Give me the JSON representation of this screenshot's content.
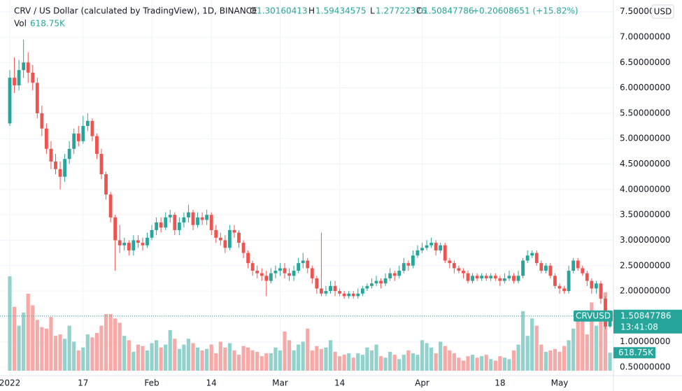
{
  "chart_data": {
    "type": "candlestick",
    "title": "CRV / US Dollar (calculated by TradingView), 1D, BINANCE",
    "ohlc_labels": [
      "O",
      "H",
      "L",
      "C"
    ],
    "change_label": "+0.20608651 (+15.82%)",
    "volume_title": "Vol",
    "volume_label": "618.75K",
    "symbol": "CRVUSD",
    "countdown": "13:41:08",
    "currency": "USD",
    "up_color": "#26a69a",
    "down_color": "#ef5350",
    "volume_up_color": "#92d2cc",
    "volume_down_color": "#f7a9a7",
    "grid": true,
    "ylim": [
      0.335,
      7.73
    ],
    "yticks": [
      {
        "value": 0.5,
        "label": "0.50000000"
      },
      {
        "value": 1,
        "label": "1.00000000"
      },
      {
        "value": 1.5,
        "label": "1.50000000"
      },
      {
        "value": 2,
        "label": "2.00000000"
      },
      {
        "value": 2.5,
        "label": "2.50000000"
      },
      {
        "value": 3,
        "label": "3.00000000"
      },
      {
        "value": 3.5,
        "label": "3.50000000"
      },
      {
        "value": 4,
        "label": "4.00000000"
      },
      {
        "value": 4.5,
        "label": "4.50000000"
      },
      {
        "value": 5,
        "label": "5.00000000"
      },
      {
        "value": 5.5,
        "label": "5.50000000"
      },
      {
        "value": 6,
        "label": "6.00000000"
      },
      {
        "value": 6.5,
        "label": "6.50000000"
      },
      {
        "value": 7,
        "label": "7.00000000"
      },
      {
        "value": 7.5,
        "label": "7.50000000"
      }
    ],
    "xticks": [
      {
        "value": "2022-01-01",
        "label": "2022"
      },
      {
        "value": "2022-01-17",
        "label": "17"
      },
      {
        "value": "2022-02-01",
        "label": "Feb"
      },
      {
        "value": "2022-02-14",
        "label": "14"
      },
      {
        "value": "2022-03-01",
        "label": "Mar"
      },
      {
        "value": "2022-03-14",
        "label": "14"
      },
      {
        "value": "2022-04-01",
        "label": "Apr"
      },
      {
        "value": "2022-04-18",
        "label": "18"
      },
      {
        "value": "2022-05-01",
        "label": "May"
      }
    ],
    "x": [
      "2022-01-01",
      "2022-01-02",
      "2022-01-03",
      "2022-01-04",
      "2022-01-05",
      "2022-01-06",
      "2022-01-07",
      "2022-01-08",
      "2022-01-09",
      "2022-01-10",
      "2022-01-11",
      "2022-01-12",
      "2022-01-13",
      "2022-01-14",
      "2022-01-15",
      "2022-01-16",
      "2022-01-17",
      "2022-01-18",
      "2022-01-19",
      "2022-01-20",
      "2022-01-21",
      "2022-01-22",
      "2022-01-23",
      "2022-01-24",
      "2022-01-25",
      "2022-01-26",
      "2022-01-27",
      "2022-01-28",
      "2022-01-29",
      "2022-01-30",
      "2022-01-31",
      "2022-02-01",
      "2022-02-02",
      "2022-02-03",
      "2022-02-04",
      "2022-02-05",
      "2022-02-06",
      "2022-02-07",
      "2022-02-08",
      "2022-02-09",
      "2022-02-10",
      "2022-02-11",
      "2022-02-12",
      "2022-02-13",
      "2022-02-14",
      "2022-02-15",
      "2022-02-16",
      "2022-02-17",
      "2022-02-18",
      "2022-02-19",
      "2022-02-20",
      "2022-02-21",
      "2022-02-22",
      "2022-02-23",
      "2022-02-24",
      "2022-02-25",
      "2022-02-26",
      "2022-02-27",
      "2022-02-28",
      "2022-03-01",
      "2022-03-02",
      "2022-03-03",
      "2022-03-04",
      "2022-03-05",
      "2022-03-06",
      "2022-03-07",
      "2022-03-08",
      "2022-03-09",
      "2022-03-10",
      "2022-03-11",
      "2022-03-12",
      "2022-03-13",
      "2022-03-14",
      "2022-03-15",
      "2022-03-16",
      "2022-03-17",
      "2022-03-18",
      "2022-03-19",
      "2022-03-20",
      "2022-03-21",
      "2022-03-22",
      "2022-03-23",
      "2022-03-24",
      "2022-03-25",
      "2022-03-26",
      "2022-03-27",
      "2022-03-28",
      "2022-03-29",
      "2022-03-30",
      "2022-03-31",
      "2022-04-01",
      "2022-04-02",
      "2022-04-03",
      "2022-04-04",
      "2022-04-05",
      "2022-04-06",
      "2022-04-07",
      "2022-04-08",
      "2022-04-09",
      "2022-04-10",
      "2022-04-11",
      "2022-04-12",
      "2022-04-13",
      "2022-04-14",
      "2022-04-15",
      "2022-04-16",
      "2022-04-17",
      "2022-04-18",
      "2022-04-19",
      "2022-04-20",
      "2022-04-21",
      "2022-04-22",
      "2022-04-23",
      "2022-04-24",
      "2022-04-25",
      "2022-04-26",
      "2022-04-27",
      "2022-04-28",
      "2022-04-29",
      "2022-04-30",
      "2022-05-01",
      "2022-05-02",
      "2022-05-03",
      "2022-05-04",
      "2022-05-05",
      "2022-05-06",
      "2022-05-07",
      "2022-05-08",
      "2022-05-09",
      "2022-05-10",
      "2022-05-11",
      "2022-05-12"
    ],
    "open": [
      5.3,
      6.2,
      6.05,
      6.35,
      6.5,
      6.3,
      6.1,
      5.5,
      5.2,
      4.8,
      4.55,
      4.4,
      4.25,
      4.6,
      4.8,
      5.1,
      4.95,
      5.25,
      5.35,
      5.05,
      4.7,
      4.3,
      3.9,
      3.45,
      3.0,
      2.9,
      2.95,
      2.8,
      3.0,
      2.95,
      2.9,
      3.05,
      3.2,
      3.35,
      3.25,
      3.45,
      3.5,
      3.2,
      3.35,
      3.45,
      3.55,
      3.3,
      3.45,
      3.4,
      3.5,
      3.2,
      3.05,
      3.0,
      2.85,
      3.2,
      3.15,
      2.95,
      2.75,
      2.55,
      2.4,
      2.35,
      2.3,
      2.2,
      2.35,
      2.4,
      2.45,
      2.35,
      2.3,
      2.4,
      2.55,
      2.6,
      2.45,
      2.25,
      2.05,
      1.95,
      2.0,
      2.1,
      2.0,
      1.95,
      1.9,
      1.95,
      1.9,
      1.95,
      2.05,
      2.1,
      2.15,
      2.2,
      2.15,
      2.25,
      2.35,
      2.3,
      2.4,
      2.55,
      2.5,
      2.7,
      2.8,
      2.85,
      2.9,
      2.95,
      2.8,
      2.9,
      2.6,
      2.55,
      2.45,
      2.4,
      2.35,
      2.2,
      2.3,
      2.25,
      2.3,
      2.25,
      2.3,
      2.25,
      2.2,
      2.25,
      2.3,
      2.2,
      2.3,
      2.6,
      2.7,
      2.75,
      2.55,
      2.4,
      2.5,
      2.3,
      2.1,
      2.05,
      2.0,
      2.4,
      2.6,
      2.45,
      2.35,
      2.2,
      2.05,
      2.15,
      1.85,
      1.30160413
    ],
    "high": [
      6.35,
      6.6,
      6.55,
      6.95,
      6.7,
      6.45,
      6.2,
      5.65,
      5.3,
      4.95,
      4.7,
      4.55,
      4.7,
      4.95,
      5.2,
      5.25,
      5.45,
      5.5,
      5.4,
      5.1,
      4.8,
      4.35,
      3.95,
      3.5,
      3.3,
      3.05,
      3.0,
      3.1,
      3.1,
      3.05,
      3.15,
      3.3,
      3.45,
      3.45,
      3.55,
      3.6,
      3.55,
      3.45,
      3.55,
      3.7,
      3.6,
      3.55,
      3.55,
      3.6,
      3.55,
      3.3,
      3.15,
      3.1,
      3.3,
      3.3,
      3.2,
      3.0,
      2.8,
      2.6,
      2.5,
      2.45,
      2.4,
      2.45,
      2.5,
      2.55,
      2.55,
      2.45,
      2.5,
      2.65,
      2.75,
      2.65,
      2.5,
      2.3,
      3.15,
      2.1,
      2.2,
      2.2,
      2.05,
      2.0,
      2.0,
      2.0,
      2.05,
      2.1,
      2.15,
      2.25,
      2.3,
      2.25,
      2.35,
      2.45,
      2.4,
      2.5,
      2.65,
      2.6,
      2.8,
      2.9,
      2.95,
      3.0,
      3.05,
      3.0,
      2.95,
      2.95,
      2.65,
      2.6,
      2.5,
      2.45,
      2.4,
      2.35,
      2.35,
      2.35,
      2.35,
      2.35,
      2.35,
      2.3,
      2.35,
      2.4,
      2.35,
      2.4,
      2.65,
      2.8,
      2.8,
      2.8,
      2.6,
      2.55,
      2.55,
      2.35,
      2.15,
      2.1,
      2.5,
      2.65,
      2.65,
      2.5,
      2.4,
      2.25,
      2.2,
      2.2,
      1.9,
      1.59434575
    ],
    "low": [
      5.25,
      5.9,
      5.95,
      6.2,
      6.1,
      5.95,
      5.4,
      5.05,
      4.7,
      4.4,
      4.3,
      4.0,
      4.15,
      4.5,
      4.7,
      4.85,
      4.9,
      5.15,
      4.95,
      4.6,
      4.2,
      3.8,
      3.35,
      2.4,
      2.75,
      2.8,
      2.7,
      2.7,
      2.85,
      2.8,
      2.85,
      3.0,
      3.1,
      3.15,
      3.2,
      3.35,
      3.1,
      3.1,
      3.25,
      3.35,
      3.2,
      3.25,
      3.3,
      3.3,
      3.1,
      2.95,
      2.9,
      2.75,
      2.8,
      3.05,
      2.85,
      2.65,
      2.45,
      2.3,
      2.25,
      2.2,
      1.9,
      2.15,
      2.25,
      2.3,
      2.25,
      2.2,
      2.2,
      2.35,
      2.45,
      2.35,
      2.15,
      1.95,
      1.9,
      1.9,
      1.95,
      1.9,
      1.9,
      1.85,
      1.85,
      1.85,
      1.85,
      1.9,
      2.0,
      2.05,
      2.1,
      2.05,
      2.1,
      2.2,
      2.2,
      2.25,
      2.35,
      2.4,
      2.45,
      2.65,
      2.75,
      2.8,
      2.85,
      2.7,
      2.75,
      2.55,
      2.45,
      2.35,
      2.35,
      2.25,
      2.15,
      2.15,
      2.2,
      2.2,
      2.2,
      2.2,
      2.2,
      2.1,
      2.15,
      2.2,
      2.15,
      2.15,
      2.25,
      2.55,
      2.65,
      2.5,
      2.35,
      2.35,
      2.25,
      2.05,
      1.95,
      1.95,
      1.95,
      2.35,
      2.4,
      2.3,
      2.1,
      1.95,
      1.95,
      1.75,
      1.25,
      1.27722376
    ],
    "close": [
      6.2,
      6.05,
      6.35,
      6.5,
      6.3,
      6.1,
      5.5,
      5.2,
      4.8,
      4.55,
      4.4,
      4.25,
      4.6,
      4.8,
      5.1,
      4.95,
      5.25,
      5.35,
      5.05,
      4.7,
      4.3,
      3.9,
      3.45,
      3.0,
      2.9,
      2.95,
      2.8,
      3.0,
      2.95,
      2.9,
      3.05,
      3.2,
      3.35,
      3.25,
      3.45,
      3.5,
      3.2,
      3.35,
      3.45,
      3.55,
      3.3,
      3.45,
      3.4,
      3.5,
      3.2,
      3.05,
      3.0,
      2.85,
      3.2,
      3.15,
      2.95,
      2.75,
      2.55,
      2.4,
      2.35,
      2.3,
      2.2,
      2.35,
      2.4,
      2.45,
      2.35,
      2.3,
      2.4,
      2.55,
      2.6,
      2.45,
      2.25,
      2.05,
      1.95,
      2.0,
      2.1,
      2.0,
      1.95,
      1.9,
      1.95,
      1.9,
      1.95,
      2.05,
      2.1,
      2.15,
      2.2,
      2.15,
      2.25,
      2.35,
      2.3,
      2.4,
      2.55,
      2.5,
      2.7,
      2.8,
      2.85,
      2.9,
      2.95,
      2.8,
      2.9,
      2.6,
      2.55,
      2.45,
      2.4,
      2.35,
      2.2,
      2.3,
      2.25,
      2.3,
      2.25,
      2.3,
      2.25,
      2.2,
      2.25,
      2.3,
      2.2,
      2.3,
      2.6,
      2.7,
      2.75,
      2.55,
      2.4,
      2.5,
      2.3,
      2.1,
      2.05,
      2.0,
      2.4,
      2.6,
      2.45,
      2.35,
      2.2,
      2.05,
      2.15,
      1.85,
      1.3,
      1.50847786
    ],
    "volume": [
      3250,
      2200,
      1550,
      2000,
      2650,
      2250,
      1750,
      1500,
      1450,
      1850,
      1200,
      1250,
      1100,
      1550,
      1000,
      700,
      800,
      1250,
      1150,
      1300,
      1550,
      1950,
      1950,
      1800,
      1650,
      1200,
      1050,
      650,
      900,
      850,
      700,
      950,
      1050,
      800,
      900,
      1400,
      1100,
      750,
      900,
      1100,
      950,
      800,
      700,
      750,
      900,
      600,
      1000,
      800,
      950,
      700,
      550,
      850,
      800,
      700,
      650,
      500,
      600,
      600,
      800,
      700,
      1350,
      1050,
      700,
      900,
      1000,
      1450,
      700,
      850,
      750,
      800,
      1050,
      650,
      500,
      550,
      600,
      450,
      600,
      550,
      800,
      700,
      900,
      500,
      450,
      650,
      550,
      400,
      550,
      700,
      600,
      550,
      1050,
      950,
      800,
      600,
      1000,
      850,
      700,
      600,
      450,
      350,
      500,
      550,
      450,
      500,
      550,
      400,
      350,
      500,
      450,
      400,
      700,
      900,
      2050,
      1200,
      1800,
      1550,
      900,
      650,
      700,
      750,
      650,
      850,
      1050,
      1450,
      2000,
      1900,
      1250,
      2350,
      1550,
      1900,
      2700,
      618.75
    ]
  }
}
